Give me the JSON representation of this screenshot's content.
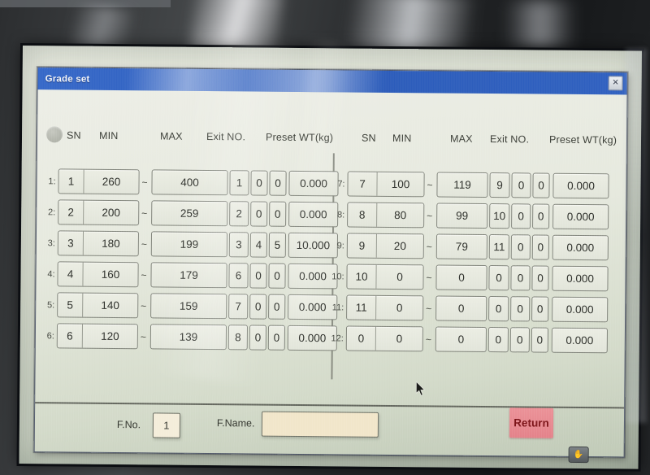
{
  "window": {
    "title": "Grade set",
    "close_icon": "✕"
  },
  "table": {
    "headers": [
      "SN",
      "MIN",
      "MAX",
      "Exit NO.",
      "Preset WT(kg)"
    ],
    "tilde": "~",
    "left_rows": [
      {
        "label": "1:",
        "sn": "1",
        "min": "260",
        "max": "400",
        "exits": [
          "1",
          "0",
          "0"
        ],
        "preset": "0.000"
      },
      {
        "label": "2:",
        "sn": "2",
        "min": "200",
        "max": "259",
        "exits": [
          "2",
          "0",
          "0"
        ],
        "preset": "0.000"
      },
      {
        "label": "3:",
        "sn": "3",
        "min": "180",
        "max": "199",
        "exits": [
          "3",
          "4",
          "5"
        ],
        "preset": "10.000"
      },
      {
        "label": "4:",
        "sn": "4",
        "min": "160",
        "max": "179",
        "exits": [
          "6",
          "0",
          "0"
        ],
        "preset": "0.000"
      },
      {
        "label": "5:",
        "sn": "5",
        "min": "140",
        "max": "159",
        "exits": [
          "7",
          "0",
          "0"
        ],
        "preset": "0.000"
      },
      {
        "label": "6:",
        "sn": "6",
        "min": "120",
        "max": "139",
        "exits": [
          "8",
          "0",
          "0"
        ],
        "preset": "0.000"
      }
    ],
    "right_rows": [
      {
        "label": "7:",
        "sn": "7",
        "min": "100",
        "max": "119",
        "exits": [
          "9",
          "0",
          "0"
        ],
        "preset": "0.000"
      },
      {
        "label": "8:",
        "sn": "8",
        "min": "80",
        "max": "99",
        "exits": [
          "10",
          "0",
          "0"
        ],
        "preset": "0.000"
      },
      {
        "label": "9:",
        "sn": "9",
        "min": "20",
        "max": "79",
        "exits": [
          "11",
          "0",
          "0"
        ],
        "preset": "0.000"
      },
      {
        "label": "10:",
        "sn": "10",
        "min": "0",
        "max": "0",
        "exits": [
          "0",
          "0",
          "0"
        ],
        "preset": "0.000"
      },
      {
        "label": "11:",
        "sn": "11",
        "min": "0",
        "max": "0",
        "exits": [
          "0",
          "0",
          "0"
        ],
        "preset": "0.000"
      },
      {
        "label": "12:",
        "sn": "0",
        "min": "0",
        "max": "0",
        "exits": [
          "0",
          "0",
          "0"
        ],
        "preset": "0.000"
      }
    ]
  },
  "footer": {
    "fno_label": "F.No.",
    "fno_value": "1",
    "fname_label": "F.Name.",
    "fname_value": "",
    "return_label": "Return"
  },
  "icons": {
    "touch": "✋"
  },
  "colors": {
    "titlebar_blue": "#2f63c4",
    "return_pink": "#e9868c",
    "input_beige": "#f0e5c8",
    "cell_gray": "#e7e9df",
    "screen_green_gray": "#ccd3c4"
  }
}
